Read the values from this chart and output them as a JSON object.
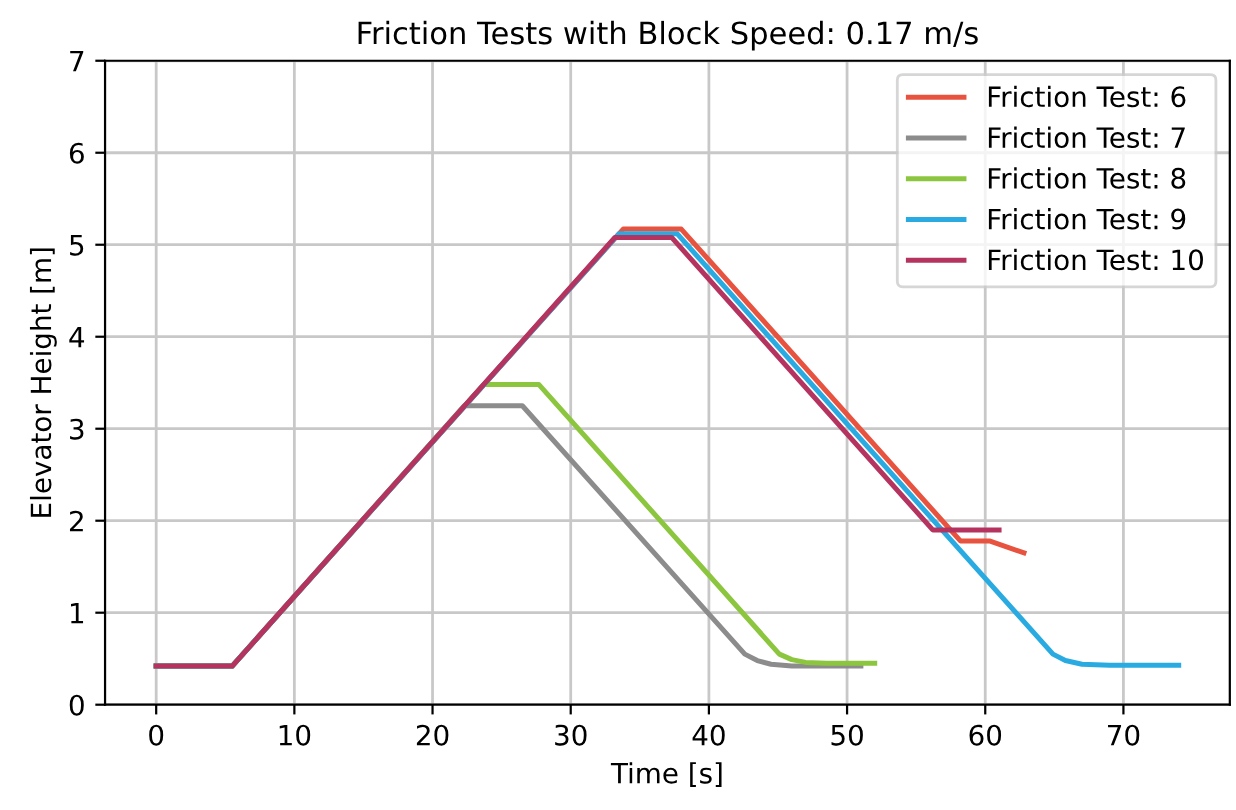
{
  "chart_data": {
    "type": "line",
    "title": "Friction Tests with Block Speed: 0.17 m/s",
    "xlabel": "Time [s]",
    "ylabel": "Elevator Height [m]",
    "xlim": [
      -3.7,
      77.7
    ],
    "ylim": [
      0,
      7
    ],
    "xticks": [
      0,
      10,
      20,
      30,
      40,
      50,
      60,
      70
    ],
    "yticks": [
      0,
      1,
      2,
      3,
      4,
      5,
      6,
      7
    ],
    "grid": true,
    "legend": "top right",
    "line_style": "solid",
    "marker": "none",
    "series": [
      {
        "name": "Friction Test: 6",
        "color": "#e8533f",
        "x": [
          0,
          5.5,
          33.8,
          38,
          58.2,
          60.3,
          62.8
        ],
        "values": [
          0.42,
          0.42,
          5.17,
          5.17,
          1.78,
          1.78,
          1.65
        ]
      },
      {
        "name": "Friction Test: 7",
        "color": "#8c8c8c",
        "x": [
          0,
          5.5,
          22.3,
          26.5,
          42.6,
          43.5,
          44.5,
          46,
          51
        ],
        "values": [
          0.42,
          0.42,
          3.25,
          3.25,
          0.55,
          0.48,
          0.44,
          0.42,
          0.42
        ]
      },
      {
        "name": "Friction Test: 8",
        "color": "#8cc63f",
        "x": [
          0,
          5.5,
          23.7,
          27.7,
          45.1,
          46,
          47,
          48.5,
          52
        ],
        "values": [
          0.42,
          0.42,
          3.48,
          3.48,
          0.55,
          0.49,
          0.46,
          0.45,
          0.45
        ]
      },
      {
        "name": "Friction Test: 9",
        "color": "#29abe2",
        "x": [
          0,
          5.5,
          33.5,
          37.7,
          64.9,
          65.8,
          67,
          69,
          74
        ],
        "values": [
          0.42,
          0.42,
          5.12,
          5.12,
          0.55,
          0.48,
          0.44,
          0.43,
          0.43
        ]
      },
      {
        "name": "Friction Test: 10",
        "color": "#b5345f",
        "x": [
          0,
          5.5,
          33.2,
          37.3,
          56.2,
          61
        ],
        "values": [
          0.42,
          0.42,
          5.08,
          5.08,
          1.9,
          1.9
        ]
      }
    ]
  }
}
